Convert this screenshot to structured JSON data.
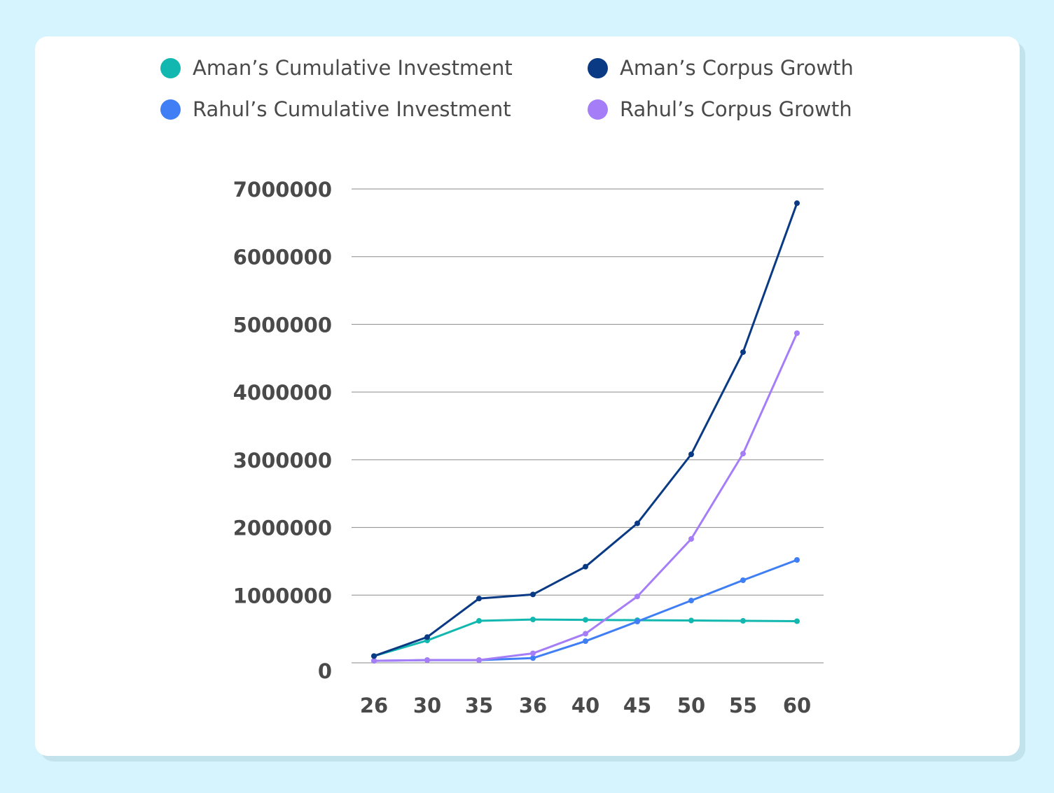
{
  "chart_data": {
    "type": "line",
    "title": "",
    "xlabel": "",
    "ylabel": "",
    "categories": [
      "26",
      "30",
      "35",
      "36",
      "40",
      "45",
      "50",
      "55",
      "60"
    ],
    "ylim": [
      0,
      7000000
    ],
    "yticks": [
      "0",
      "1000000",
      "2000000",
      "3000000",
      "4000000",
      "5000000",
      "6000000",
      "7000000"
    ],
    "grid": true,
    "legend_placement": "top",
    "series": [
      {
        "name": "Aman’s Cumulative Investment",
        "color": "#12b8b0",
        "values": [
          100000,
          330000,
          620000,
          640000,
          635000,
          630000,
          625000,
          620000,
          615000
        ]
      },
      {
        "name": "Aman’s Corpus Growth",
        "color": "#0a3a84",
        "values": [
          100000,
          380000,
          950000,
          1010000,
          1420000,
          2060000,
          3080000,
          4590000,
          6790000
        ]
      },
      {
        "name": "Rahul’s Cumulative Investment",
        "color": "#3f7ef5",
        "values": [
          30000,
          40000,
          40000,
          70000,
          320000,
          610000,
          920000,
          1220000,
          1520000
        ]
      },
      {
        "name": "Rahul’s Corpus Growth",
        "color": "#a57ef7",
        "values": [
          30000,
          40000,
          40000,
          140000,
          430000,
          980000,
          1830000,
          3090000,
          4870000
        ]
      }
    ]
  }
}
